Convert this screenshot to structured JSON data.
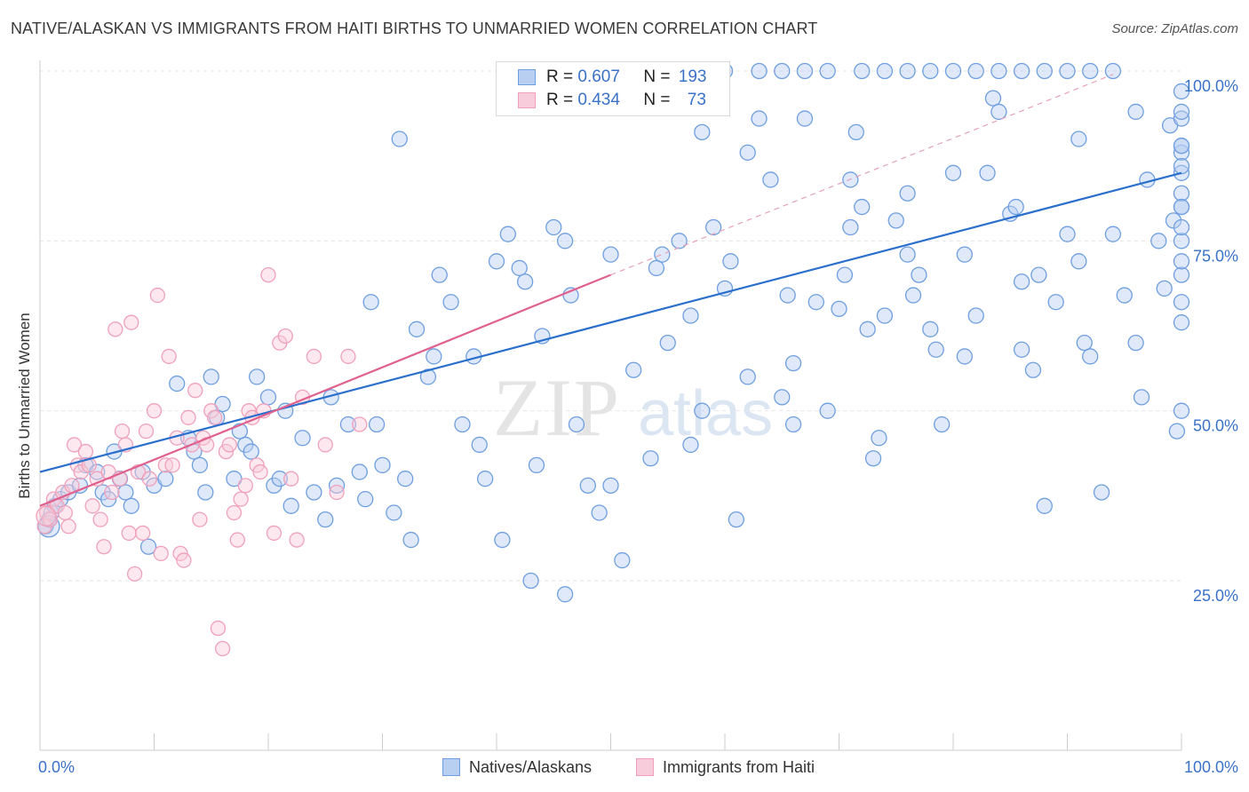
{
  "chart_data": {
    "type": "scatter",
    "title": "NATIVE/ALASKAN VS IMMIGRANTS FROM HAITI BIRTHS TO UNMARRIED WOMEN CORRELATION CHART",
    "source": "Source: ZipAtlas.com",
    "watermark": {
      "zip": "ZIP",
      "atlas": "atlas"
    },
    "xlabel": "",
    "ylabel": "Births to Unmarried Women",
    "xlim": [
      0,
      100
    ],
    "ylim": [
      0,
      100
    ],
    "x_tick_labels": {
      "left": "0.0%",
      "right": "100.0%"
    },
    "y_ticks": [
      {
        "value": 25,
        "label": "25.0%"
      },
      {
        "value": 50,
        "label": "50.0%"
      },
      {
        "value": 75,
        "label": "75.0%"
      },
      {
        "value": 100,
        "label": "100.0%"
      }
    ],
    "legend_stats": [
      {
        "r_label": "R = ",
        "r_value": "0.607",
        "n_label": "N = ",
        "n_value": "193"
      },
      {
        "r_label": "R = ",
        "r_value": "0.434",
        "n_label": "N = ",
        "n_value": "73"
      }
    ],
    "series": [
      {
        "name": "Natives/Alaskans",
        "color": "#6f9fe0",
        "fill": "#b9cff2",
        "line_color": "#2a6fcc",
        "trend": {
          "x0": 0,
          "y0": 41.0,
          "x1": 100,
          "y1": 85.0
        },
        "points": [
          [
            0.5,
            33
          ],
          [
            0.8,
            34
          ],
          [
            1.0,
            35
          ],
          [
            1.3,
            36
          ],
          [
            1.8,
            37
          ],
          [
            2.5,
            38
          ],
          [
            3.5,
            39
          ],
          [
            4,
            42
          ],
          [
            5,
            41
          ],
          [
            5.5,
            38
          ],
          [
            6,
            37
          ],
          [
            6.5,
            44
          ],
          [
            7,
            40
          ],
          [
            7.5,
            38
          ],
          [
            8,
            36
          ],
          [
            9,
            41
          ],
          [
            9.5,
            30
          ],
          [
            10,
            39
          ],
          [
            11,
            40
          ],
          [
            12,
            54
          ],
          [
            13,
            46
          ],
          [
            13.5,
            44
          ],
          [
            14,
            42
          ],
          [
            14.5,
            38
          ],
          [
            15,
            55
          ],
          [
            15.5,
            49
          ],
          [
            16,
            51
          ],
          [
            17,
            40
          ],
          [
            17.5,
            47
          ],
          [
            18,
            45
          ],
          [
            18.5,
            44
          ],
          [
            19,
            55
          ],
          [
            20,
            52
          ],
          [
            20.5,
            39
          ],
          [
            21,
            40
          ],
          [
            21.5,
            50
          ],
          [
            22,
            36
          ],
          [
            23,
            46
          ],
          [
            24,
            38
          ],
          [
            25,
            34
          ],
          [
            25.5,
            52
          ],
          [
            26,
            39
          ],
          [
            27,
            48
          ],
          [
            28,
            41
          ],
          [
            28.5,
            37
          ],
          [
            29,
            66
          ],
          [
            29.5,
            48
          ],
          [
            30,
            42
          ],
          [
            31,
            35
          ],
          [
            31.5,
            90
          ],
          [
            32,
            40
          ],
          [
            32.5,
            31
          ],
          [
            33,
            62
          ],
          [
            34,
            55
          ],
          [
            34.5,
            58
          ],
          [
            35,
            70
          ],
          [
            36,
            66
          ],
          [
            37,
            48
          ],
          [
            38,
            58
          ],
          [
            38.5,
            45
          ],
          [
            39,
            40
          ],
          [
            40,
            72
          ],
          [
            40.5,
            31
          ],
          [
            41,
            76
          ],
          [
            42,
            71
          ],
          [
            42.5,
            69
          ],
          [
            43,
            25
          ],
          [
            43.5,
            42
          ],
          [
            44,
            61
          ],
          [
            45,
            77
          ],
          [
            46,
            23
          ],
          [
            46.5,
            67
          ],
          [
            47,
            48
          ],
          [
            48,
            39
          ],
          [
            49,
            35
          ],
          [
            50,
            39
          ],
          [
            51,
            28
          ],
          [
            52,
            56
          ],
          [
            53,
            100
          ],
          [
            53.5,
            43
          ],
          [
            54,
            71
          ],
          [
            54.5,
            73
          ],
          [
            55,
            60
          ],
          [
            56,
            75
          ],
          [
            57,
            45
          ],
          [
            58,
            50
          ],
          [
            59,
            77
          ],
          [
            60,
            68
          ],
          [
            60.5,
            72
          ],
          [
            61,
            34
          ],
          [
            62,
            55
          ],
          [
            63,
            93
          ],
          [
            64,
            84
          ],
          [
            65,
            52
          ],
          [
            65.5,
            67
          ],
          [
            66,
            48
          ],
          [
            67,
            93
          ],
          [
            68,
            66
          ],
          [
            69,
            50
          ],
          [
            70,
            65
          ],
          [
            70.5,
            70
          ],
          [
            71,
            84
          ],
          [
            71.5,
            91
          ],
          [
            72,
            80
          ],
          [
            72.5,
            62
          ],
          [
            73,
            43
          ],
          [
            73.5,
            46
          ],
          [
            74,
            64
          ],
          [
            75,
            78
          ],
          [
            76,
            82
          ],
          [
            76.5,
            67
          ],
          [
            77,
            70
          ],
          [
            78,
            62
          ],
          [
            78.5,
            59
          ],
          [
            79,
            48
          ],
          [
            80,
            85
          ],
          [
            81,
            73
          ],
          [
            82,
            64
          ],
          [
            83,
            85
          ],
          [
            83.5,
            96
          ],
          [
            84,
            94
          ],
          [
            85,
            79
          ],
          [
            85.5,
            80
          ],
          [
            86,
            59
          ],
          [
            87,
            56
          ],
          [
            87.5,
            70
          ],
          [
            88,
            36
          ],
          [
            89,
            66
          ],
          [
            90,
            76
          ],
          [
            91,
            72
          ],
          [
            91.5,
            60
          ],
          [
            92,
            58
          ],
          [
            93,
            38
          ],
          [
            94,
            76
          ],
          [
            95,
            67
          ],
          [
            96,
            60
          ],
          [
            96.5,
            52
          ],
          [
            97,
            84
          ],
          [
            98,
            75
          ],
          [
            98.5,
            68
          ],
          [
            99,
            92
          ],
          [
            99.3,
            78
          ],
          [
            99.6,
            47
          ],
          [
            100,
            88
          ],
          [
            100.2,
            63
          ],
          [
            100.5,
            50
          ],
          [
            100.8,
            89
          ],
          [
            101,
            85
          ],
          [
            101.3,
            70
          ],
          [
            101.6,
            72
          ],
          [
            102,
            93
          ],
          [
            102.3,
            80
          ],
          [
            102.6,
            75
          ],
          [
            103,
            66
          ],
          [
            103.3,
            82
          ],
          [
            103.6,
            86
          ],
          [
            104,
            80
          ],
          [
            104.3,
            77
          ],
          [
            104.6,
            89
          ],
          [
            105,
            94
          ],
          [
            52,
            100
          ],
          [
            55,
            100
          ],
          [
            58,
            100
          ],
          [
            60,
            100
          ],
          [
            63,
            100
          ],
          [
            65,
            100
          ],
          [
            67,
            100
          ],
          [
            69,
            100
          ],
          [
            72,
            100
          ],
          [
            74,
            100
          ],
          [
            76,
            100
          ],
          [
            78,
            100
          ],
          [
            80,
            100
          ],
          [
            82,
            100
          ],
          [
            84,
            100
          ],
          [
            86,
            100
          ],
          [
            88,
            100
          ],
          [
            90,
            100
          ],
          [
            92,
            100
          ],
          [
            94,
            100
          ],
          [
            46,
            75
          ],
          [
            50,
            73
          ],
          [
            57,
            64
          ],
          [
            62,
            88
          ],
          [
            66,
            57
          ],
          [
            71,
            77
          ],
          [
            76,
            73
          ],
          [
            81,
            58
          ],
          [
            86,
            69
          ],
          [
            91,
            90
          ],
          [
            96,
            94
          ],
          [
            101,
            97
          ],
          [
            58,
            91
          ]
        ]
      },
      {
        "name": "Immigrants from Haiti",
        "color": "#f0a0bb",
        "fill": "#f8ccda",
        "line_color": "#e0608e",
        "trend": {
          "x0": 0,
          "y0": 36.0,
          "x1": 50,
          "y1": 70.0
        },
        "trend_ext": {
          "x0": 50,
          "y0": 70.0,
          "x1": 94,
          "y1": 99.5
        },
        "points": [
          [
            0.4,
            33
          ],
          [
            0.6,
            35
          ],
          [
            0.9,
            34
          ],
          [
            1.2,
            37
          ],
          [
            1.5,
            36
          ],
          [
            2,
            38
          ],
          [
            2.2,
            35
          ],
          [
            2.5,
            33
          ],
          [
            2.8,
            39
          ],
          [
            3,
            45
          ],
          [
            3.3,
            42
          ],
          [
            3.6,
            41
          ],
          [
            4,
            44
          ],
          [
            4.3,
            42
          ],
          [
            4.6,
            36
          ],
          [
            5,
            40
          ],
          [
            5.3,
            34
          ],
          [
            5.6,
            30
          ],
          [
            6,
            41
          ],
          [
            6.3,
            38
          ],
          [
            6.6,
            62
          ],
          [
            7,
            40
          ],
          [
            7.2,
            47
          ],
          [
            7.5,
            45
          ],
          [
            7.8,
            32
          ],
          [
            8,
            63
          ],
          [
            8.3,
            26
          ],
          [
            8.6,
            41
          ],
          [
            9,
            32
          ],
          [
            9.3,
            47
          ],
          [
            9.6,
            40
          ],
          [
            10,
            50
          ],
          [
            10.3,
            67
          ],
          [
            10.6,
            29
          ],
          [
            11,
            42
          ],
          [
            11.3,
            58
          ],
          [
            11.6,
            42
          ],
          [
            12,
            46
          ],
          [
            12.3,
            29
          ],
          [
            12.6,
            28
          ],
          [
            13,
            49
          ],
          [
            13.3,
            45
          ],
          [
            13.6,
            53
          ],
          [
            14,
            34
          ],
          [
            14.3,
            46
          ],
          [
            14.6,
            45
          ],
          [
            15,
            50
          ],
          [
            15.3,
            49
          ],
          [
            15.6,
            18
          ],
          [
            16,
            15
          ],
          [
            16.3,
            44
          ],
          [
            16.6,
            45
          ],
          [
            17,
            35
          ],
          [
            17.3,
            31
          ],
          [
            17.6,
            37
          ],
          [
            18,
            39
          ],
          [
            18.3,
            50
          ],
          [
            18.6,
            49
          ],
          [
            19,
            42
          ],
          [
            19.3,
            41
          ],
          [
            19.6,
            50
          ],
          [
            20,
            70
          ],
          [
            20.5,
            32
          ],
          [
            21,
            60
          ],
          [
            21.5,
            61
          ],
          [
            22,
            40
          ],
          [
            22.5,
            31
          ],
          [
            23,
            52
          ],
          [
            24,
            58
          ],
          [
            25,
            45
          ],
          [
            26,
            38
          ],
          [
            27,
            58
          ],
          [
            28,
            48
          ]
        ]
      }
    ]
  }
}
